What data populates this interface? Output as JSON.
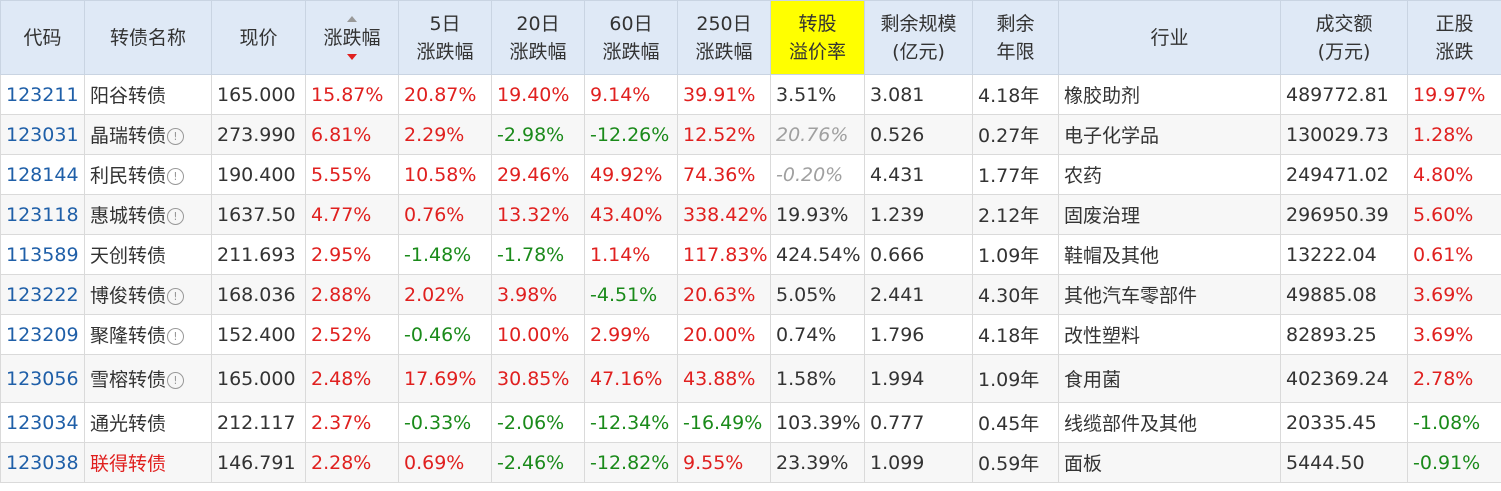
{
  "headers": {
    "code": "代码",
    "name": "转债名称",
    "price": "现价",
    "change": "涨跌幅",
    "d5_l1": "5日",
    "d5_l2": "涨跌幅",
    "d20_l1": "20日",
    "d20_l2": "涨跌幅",
    "d60_l1": "60日",
    "d60_l2": "涨跌幅",
    "d250_l1": "250日",
    "d250_l2": "涨跌幅",
    "premium_l1": "转股",
    "premium_l2": "溢价率",
    "scale_l1": "剩余规模",
    "scale_l2": "(亿元)",
    "years_l1": "剩余",
    "years_l2": "年限",
    "industry": "行业",
    "turnover_l1": "成交额",
    "turnover_l2": "(万元)",
    "stock_l1": "正股",
    "stock_l2": "涨跌"
  },
  "info_icon_glyph": "!",
  "rows": [
    {
      "code": "123211",
      "name": "阳谷转债",
      "info": false,
      "price": "165.000",
      "change": "15.87%",
      "d5": "20.87%",
      "d20": "19.40%",
      "d60": "9.14%",
      "d250": "39.91%",
      "premium": "3.51%",
      "scale": "3.081",
      "years": "4.18年",
      "industry": "橡胶助剂",
      "turnover": "489772.81",
      "stock": "19.97%"
    },
    {
      "code": "123031",
      "name": "晶瑞转债",
      "info": true,
      "price": "273.990",
      "change": "6.81%",
      "d5": "2.29%",
      "d20": "-2.98%",
      "d60": "-12.26%",
      "d250": "12.52%",
      "premium": "20.76%",
      "scale": "0.526",
      "years": "0.27年",
      "industry": "电子化学品",
      "turnover": "130029.73",
      "stock": "1.28%"
    },
    {
      "code": "128144",
      "name": "利民转债",
      "info": true,
      "price": "190.400",
      "change": "5.55%",
      "d5": "10.58%",
      "d20": "29.46%",
      "d60": "49.92%",
      "d250": "74.36%",
      "premium": "-0.20%",
      "scale": "4.431",
      "years": "1.77年",
      "industry": "农药",
      "turnover": "249471.02",
      "stock": "4.80%"
    },
    {
      "code": "123118",
      "name": "惠城转债",
      "info": true,
      "price": "1637.50",
      "change": "4.77%",
      "d5": "0.76%",
      "d20": "13.32%",
      "d60": "43.40%",
      "d250": "338.42%",
      "premium": "19.93%",
      "scale": "1.239",
      "years": "2.12年",
      "industry": "固废治理",
      "turnover": "296950.39",
      "stock": "5.60%"
    },
    {
      "code": "113589",
      "name": "天创转债",
      "info": false,
      "price": "211.693",
      "change": "2.95%",
      "d5": "-1.48%",
      "d20": "-1.78%",
      "d60": "1.14%",
      "d250": "117.83%",
      "premium": "424.54%",
      "scale": "0.666",
      "years": "1.09年",
      "industry": "鞋帽及其他",
      "turnover": "13222.04",
      "stock": "0.61%"
    },
    {
      "code": "123222",
      "name": "博俊转债",
      "info": true,
      "price": "168.036",
      "change": "2.88%",
      "d5": "2.02%",
      "d20": "3.98%",
      "d60": "-4.51%",
      "d250": "20.63%",
      "premium": "5.05%",
      "scale": "2.441",
      "years": "4.30年",
      "industry": "其他汽车零部件",
      "turnover": "49885.08",
      "stock": "3.69%"
    },
    {
      "code": "123209",
      "name": "聚隆转债",
      "info": true,
      "price": "152.400",
      "change": "2.52%",
      "d5": "-0.46%",
      "d20": "10.00%",
      "d60": "2.99%",
      "d250": "20.00%",
      "premium": "0.74%",
      "scale": "1.796",
      "years": "4.18年",
      "industry": "改性塑料",
      "turnover": "82893.25",
      "stock": "3.69%"
    },
    {
      "code": "123056",
      "name": "雪榕转债",
      "info": true,
      "price": "165.000",
      "change": "2.48%",
      "d5": "17.69%",
      "d20": "30.85%",
      "d60": "47.16%",
      "d250": "43.88%",
      "premium": "1.58%",
      "scale": "1.994",
      "years": "1.09年",
      "industry": "食用菌",
      "turnover": "402369.24",
      "stock": "2.78%"
    },
    {
      "code": "123034",
      "name": "通光转债",
      "info": false,
      "price": "212.117",
      "change": "2.37%",
      "d5": "-0.33%",
      "d20": "-2.06%",
      "d60": "-12.34%",
      "d250": "-16.49%",
      "premium": "103.39%",
      "scale": "0.777",
      "years": "0.45年",
      "industry": "线缆部件及其他",
      "turnover": "20335.45",
      "stock": "-1.08%"
    },
    {
      "code": "123038",
      "name": "联得转债",
      "info": false,
      "name_red": true,
      "price": "146.791",
      "change": "2.28%",
      "d5": "0.69%",
      "d20": "-2.46%",
      "d60": "-12.82%",
      "d250": "9.55%",
      "premium": "23.39%",
      "scale": "1.099",
      "years": "0.59年",
      "industry": "面板",
      "turnover": "5444.50",
      "stock": "-0.91%"
    }
  ],
  "colors": {
    "up": "#e0201f",
    "down": "#1a8a1a",
    "header_bg": "#dfe9f6",
    "highlight": "#ffff00",
    "code": "#1f5fa8"
  }
}
